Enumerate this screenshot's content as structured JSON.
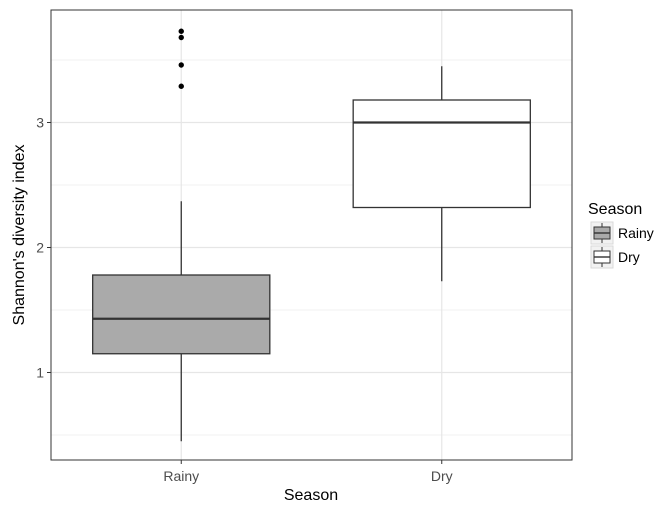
{
  "chart_data": {
    "type": "box",
    "xlabel": "Season",
    "ylabel": "Shannon's diversity index",
    "categories": [
      "Rainy",
      "Dry"
    ],
    "yticks": [
      1,
      2,
      3
    ],
    "ylim": [
      0.3,
      3.9
    ],
    "grid": true,
    "legend": {
      "title": "Season",
      "position": "right",
      "entries": [
        {
          "label": "Rainy",
          "fill": "#aaaaaa"
        },
        {
          "label": "Dry",
          "fill": "#ffffff"
        }
      ]
    },
    "boxes": [
      {
        "category": "Rainy",
        "min": 0.45,
        "q1": 1.15,
        "median": 1.43,
        "q3": 1.78,
        "max": 2.37,
        "outliers": [
          3.29,
          3.46,
          3.68,
          3.73
        ],
        "fill": "#aaaaaa"
      },
      {
        "category": "Dry",
        "min": 1.73,
        "q1": 2.32,
        "median": 3.0,
        "q3": 3.18,
        "max": 3.45,
        "outliers": [],
        "fill": "#ffffff"
      }
    ]
  }
}
